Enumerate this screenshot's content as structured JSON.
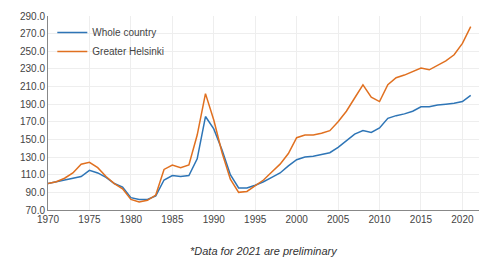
{
  "chart_data": {
    "type": "line",
    "x": [
      1970,
      1971,
      1972,
      1973,
      1974,
      1975,
      1976,
      1977,
      1978,
      1979,
      1980,
      1981,
      1982,
      1983,
      1984,
      1985,
      1986,
      1987,
      1988,
      1989,
      1990,
      1991,
      1992,
      1993,
      1994,
      1995,
      1996,
      1997,
      1998,
      1999,
      2000,
      2001,
      2002,
      2003,
      2004,
      2005,
      2006,
      2007,
      2008,
      2009,
      2010,
      2011,
      2012,
      2013,
      2014,
      2015,
      2016,
      2017,
      2018,
      2019,
      2020,
      2021
    ],
    "series": [
      {
        "name": "Whole country",
        "color": "#2e75b6",
        "values": [
          100,
          102,
          104,
          106,
          108,
          115,
          112,
          107,
          100,
          96,
          84,
          82,
          82,
          86,
          104,
          109,
          108,
          109,
          128,
          176,
          162,
          138,
          110,
          95,
          95,
          98,
          102,
          107,
          112,
          120,
          127,
          130,
          131,
          133,
          135,
          141,
          149,
          156,
          160,
          158,
          163,
          174,
          177,
          179,
          182,
          187,
          187,
          189,
          190,
          191,
          193,
          200
        ]
      },
      {
        "name": "Greater Helsinki",
        "color": "#e07020",
        "values": [
          100,
          102,
          106,
          112,
          122,
          124,
          118,
          108,
          100,
          94,
          82,
          79,
          81,
          87,
          116,
          121,
          118,
          121,
          155,
          202,
          172,
          135,
          105,
          90,
          91,
          97,
          104,
          113,
          122,
          134,
          152,
          155,
          155,
          157,
          160,
          170,
          182,
          197,
          212,
          198,
          193,
          212,
          220,
          223,
          227,
          231,
          229,
          234,
          239,
          246,
          259,
          278
        ]
      }
    ],
    "xlim": [
      1970,
      2022
    ],
    "xticks": [
      1970,
      1975,
      1980,
      1985,
      1990,
      1995,
      2000,
      2005,
      2010,
      2015,
      2020
    ],
    "ylim": [
      70,
      290
    ],
    "yticks": [
      {
        "value": 70,
        "label": "70.0"
      },
      {
        "value": 90,
        "label": "90.0"
      },
      {
        "value": 110,
        "label": "110.0"
      },
      {
        "value": 130,
        "label": "130.0"
      },
      {
        "value": 150,
        "label": "150.0"
      },
      {
        "value": 170,
        "label": "170.0"
      },
      {
        "value": 190,
        "label": "190.0"
      },
      {
        "value": 210,
        "label": "210.0"
      },
      {
        "value": 230,
        "label": "230.0"
      },
      {
        "value": 250,
        "label": "250.0"
      },
      {
        "value": 270,
        "label": "270.0"
      },
      {
        "value": 290,
        "label": "290.0"
      }
    ],
    "grid": true,
    "legend": "upper left",
    "annotations": [
      "*Data for 2021 are preliminary"
    ]
  }
}
